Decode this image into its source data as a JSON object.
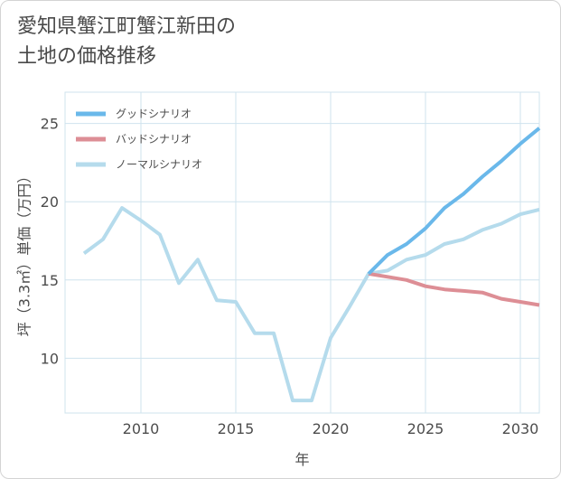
{
  "title": {
    "line1": "愛知県蟹江町蟹江新田の",
    "line2": "土地の価格推移"
  },
  "chart_data": {
    "type": "line",
    "xlabel": "年",
    "ylabel": "坪（3.3㎡）単価（万円）",
    "xlim": [
      2006,
      2031
    ],
    "ylim": [
      6.5,
      27
    ],
    "xticks": [
      2010,
      2015,
      2020,
      2025,
      2030
    ],
    "yticks": [
      10,
      15,
      20,
      25
    ],
    "grid": true,
    "legend_position": "top-left",
    "series": [
      {
        "name": "グッドシナリオ",
        "color": "#6ab8ea",
        "x": [
          2022,
          2023,
          2024,
          2025,
          2026,
          2027,
          2028,
          2029,
          2030,
          2031
        ],
        "y": [
          15.4,
          16.6,
          17.3,
          18.3,
          19.6,
          20.5,
          21.6,
          22.6,
          23.7,
          24.7
        ]
      },
      {
        "name": "バッドシナリオ",
        "color": "#dd8e95",
        "x": [
          2022,
          2023,
          2024,
          2025,
          2026,
          2027,
          2028,
          2029,
          2030,
          2031
        ],
        "y": [
          15.4,
          15.2,
          15.0,
          14.6,
          14.4,
          14.3,
          14.2,
          13.8,
          13.6,
          13.4
        ]
      },
      {
        "name": "ノーマルシナリオ",
        "color": "#b5dbec",
        "x": [
          2007,
          2008,
          2009,
          2010,
          2011,
          2012,
          2013,
          2014,
          2015,
          2016,
          2017,
          2018,
          2019,
          2020,
          2021,
          2022,
          2023,
          2024,
          2025,
          2026,
          2027,
          2028,
          2029,
          2030,
          2031
        ],
        "y": [
          16.7,
          17.6,
          19.6,
          18.8,
          17.9,
          14.8,
          16.3,
          13.7,
          13.6,
          11.6,
          11.6,
          7.3,
          7.3,
          11.3,
          13.3,
          15.4,
          15.6,
          16.3,
          16.6,
          17.3,
          17.6,
          18.2,
          18.6,
          19.2,
          19.5
        ]
      }
    ]
  }
}
